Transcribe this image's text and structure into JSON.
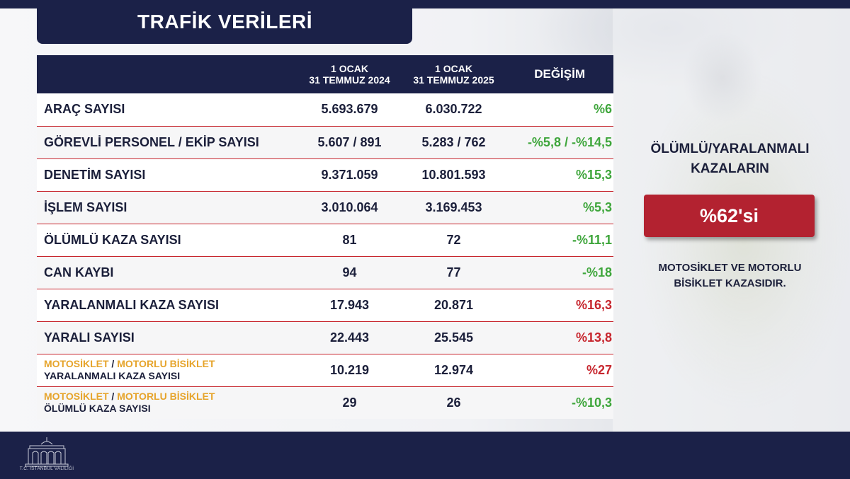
{
  "title": "TRAFİK VERİLERİ",
  "table": {
    "header": {
      "col1_line1": "1 OCAK",
      "col1_line2": "31 TEMMUZ 2024",
      "col2_line1": "1 OCAK",
      "col2_line2": "31 TEMMUZ 2025",
      "change": "DEĞİŞİM"
    },
    "rows": [
      {
        "label": "ARAÇ SAYISI",
        "v2024": "5.693.679",
        "v2025": "6.030.722",
        "change": "%6",
        "trend": "green"
      },
      {
        "label": "GÖREVLİ PERSONEL / EKİP SAYISI",
        "v2024": "5.607 / 891",
        "v2025": "5.283 / 762",
        "change": "-%5,8 / -%14,5",
        "trend": "green"
      },
      {
        "label": "DENETİM SAYISI",
        "v2024": "9.371.059",
        "v2025": "10.801.593",
        "change": "%15,3",
        "trend": "green"
      },
      {
        "label": "İŞLEM SAYISI",
        "v2024": "3.010.064",
        "v2025": "3.169.453",
        "change": "%5,3",
        "trend": "green"
      },
      {
        "label": "ÖLÜMLÜ KAZA SAYISI",
        "v2024": "81",
        "v2025": "72",
        "change": "-%11,1",
        "trend": "green"
      },
      {
        "label": "CAN KAYBI",
        "v2024": "94",
        "v2025": "77",
        "change": "-%18",
        "trend": "green"
      },
      {
        "label": "YARALANMALI KAZA SAYISI",
        "v2024": "17.943",
        "v2025": "20.871",
        "change": "%16,3",
        "trend": "red"
      },
      {
        "label": "YARALI SAYISI",
        "v2024": "22.443",
        "v2025": "25.545",
        "change": "%13,8",
        "trend": "red"
      },
      {
        "label_a": "MOTOSİKLET",
        "label_sep": " / ",
        "label_b": "MOTORLU BİSİKLET",
        "label_sub": "YARALANMALI KAZA SAYISI",
        "v2024": "10.219",
        "v2025": "12.974",
        "change": "%27",
        "trend": "red"
      },
      {
        "label_a": "MOTOSİKLET",
        "label_sep": " / ",
        "label_b": "MOTORLU BİSİKLET",
        "label_sub": "ÖLÜMLÜ KAZA SAYISI",
        "v2024": "29",
        "v2025": "26",
        "change": "-%10,3",
        "trend": "green"
      }
    ]
  },
  "side": {
    "title_line1": "ÖLÜMLÜ/YARALANMALI",
    "title_line2": "KAZALARIN",
    "highlight": "%62'si",
    "text_line1": "MOTOSİKLET VE MOTORLU",
    "text_line2": "BİSİKLET KAZASIDIR."
  },
  "footer": {
    "logo_text": "T.C. İSTANBUL VALİLİĞİ"
  },
  "colors": {
    "navy": "#1b2148",
    "red": "#c7262e",
    "green": "#3fa63c",
    "orange": "#e6a42b",
    "highlight_box": "#b32230"
  }
}
